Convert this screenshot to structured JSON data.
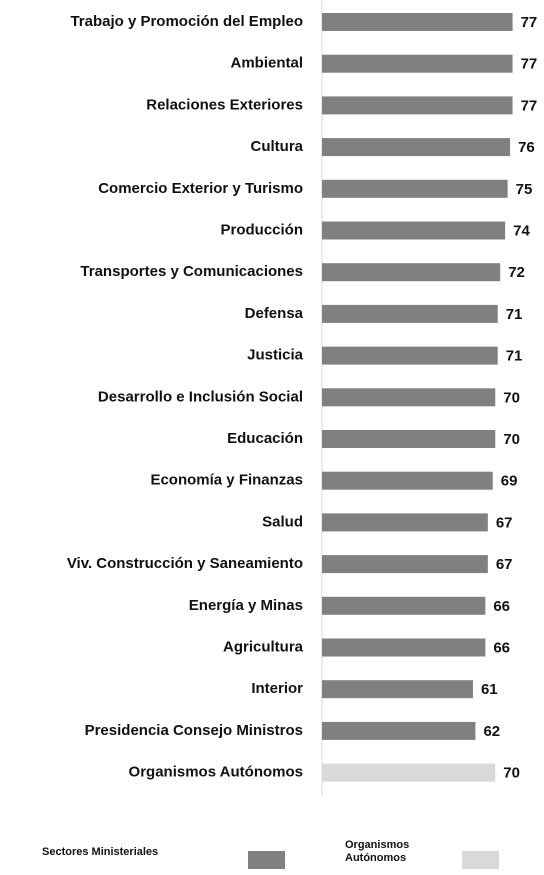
{
  "chart_data": {
    "type": "bar",
    "orientation": "horizontal",
    "categories": [
      "Trabajo y Promoción del Empleo",
      "Ambiental",
      "Relaciones Exteriores",
      "Cultura",
      "Comercio Exterior y Turismo",
      "Producción",
      "Transportes y Comunicaciones",
      "Defensa",
      "Justicia",
      "Desarrollo e Inclusión Social",
      "Educación",
      "Economía y Finanzas",
      "Salud",
      "Viv. Construcción y Saneamiento",
      "Energía y Minas",
      "Agricultura",
      "Interior",
      "Presidencia Consejo Ministros",
      "Organismos Autónomos"
    ],
    "series": [
      {
        "name": "Sectores Ministeriales",
        "color": "#808080",
        "values": [
          77,
          77,
          77,
          76,
          75,
          74,
          72,
          71,
          71,
          70,
          70,
          69,
          67,
          67,
          66,
          66,
          61,
          62,
          null
        ]
      },
      {
        "name": "Organismos Autónomos",
        "color": "#d9d9d9",
        "values": [
          null,
          null,
          null,
          null,
          null,
          null,
          null,
          null,
          null,
          null,
          null,
          null,
          null,
          null,
          null,
          null,
          null,
          null,
          70
        ]
      }
    ],
    "xlim": [
      0,
      80
    ],
    "legend": "bottom"
  }
}
